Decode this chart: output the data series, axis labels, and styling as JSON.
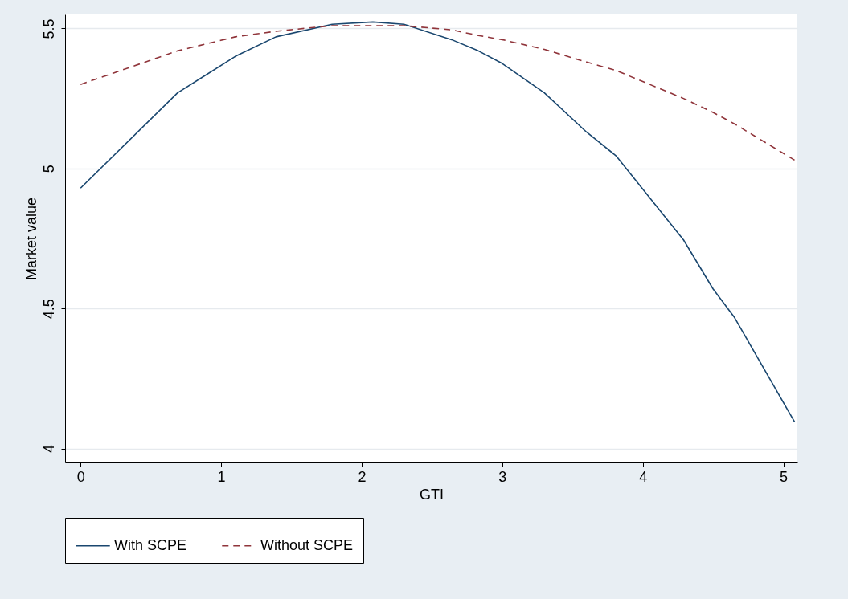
{
  "chart_data": {
    "type": "line",
    "xlabel": "GTI",
    "ylabel": "Market value",
    "x": [
      0,
      0.69,
      1.1,
      1.39,
      1.79,
      2.08,
      2.3,
      2.64,
      2.83,
      3.0,
      3.3,
      3.6,
      3.81,
      4.29,
      4.5,
      4.65,
      5.08
    ],
    "series": [
      {
        "name": "With SCPE",
        "color": "#1a476f",
        "line_style": "solid",
        "values": [
          4.93,
          5.27,
          5.4,
          5.47,
          5.515,
          5.523,
          5.515,
          5.46,
          5.42,
          5.375,
          5.27,
          5.13,
          5.045,
          4.745,
          4.57,
          4.47,
          4.095
        ]
      },
      {
        "name": "Without SCPE",
        "color": "#90353b",
        "line_style": "dashed",
        "values": [
          5.3,
          5.42,
          5.47,
          5.49,
          5.51,
          5.51,
          5.51,
          5.495,
          5.475,
          5.46,
          5.425,
          5.38,
          5.35,
          5.25,
          5.2,
          5.16,
          5.03
        ]
      }
    ],
    "xlim": [
      -0.11,
      5.1
    ],
    "xticks": [
      0,
      1,
      2,
      3,
      4,
      5
    ],
    "ylim": [
      3.95,
      5.55
    ],
    "yticks": [
      {
        "value": 4,
        "label": "4"
      },
      4.5,
      {
        "value": 5,
        "label": "5"
      },
      5.5
    ],
    "grid": "y",
    "legend": "bottom",
    "marker": "none"
  }
}
